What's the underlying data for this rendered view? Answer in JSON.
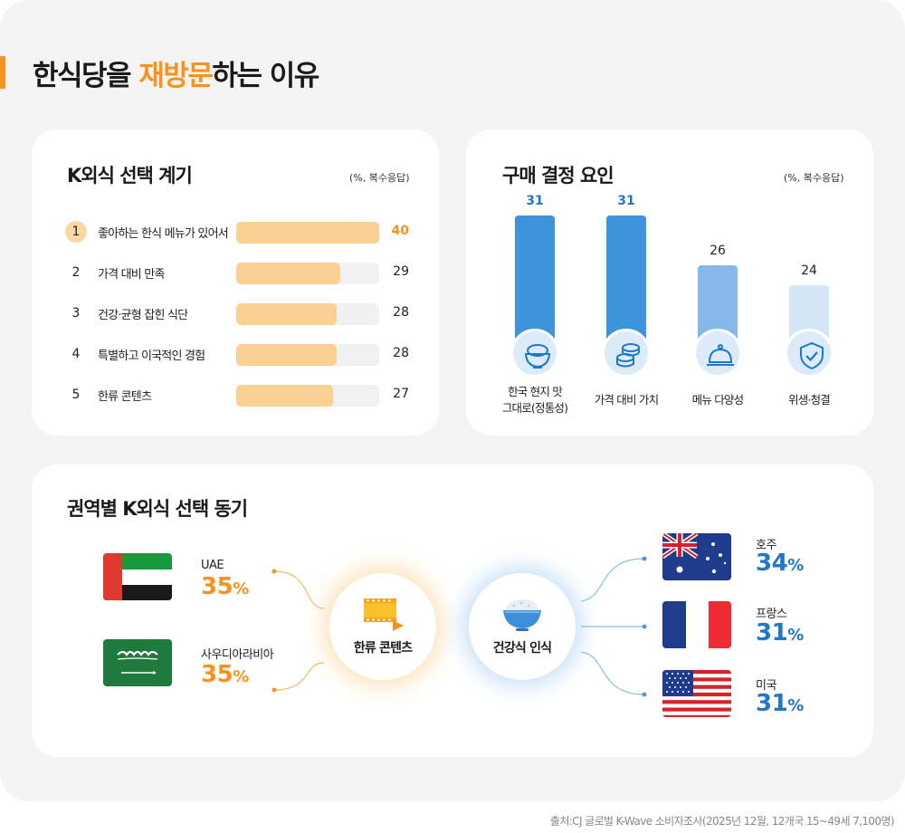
{
  "title": {
    "pre": "한식당을 ",
    "highlight": "재방문",
    "post": "하는 이유"
  },
  "source": "출처:CJ 글로벌 K-Wave 소비자조사(2025년 12월, 12개국 15~49세 7,100명)",
  "colors": {
    "orange": "#f7931e",
    "blue": "#1f78c8",
    "bar_light_orange": "#fbd193"
  },
  "chart_data": [
    {
      "type": "bar",
      "orientation": "horizontal",
      "title": "K외식 선택 계기",
      "note": "(%, 복수응답)",
      "ranks": [
        "1",
        "2",
        "3",
        "4",
        "5"
      ],
      "categories": [
        "좋아하는 한식 메뉴가 있어서",
        "가격 대비 만족",
        "건강·균형 잡힌 식단",
        "특별하고 이국적인 경험",
        "한류 콘텐츠"
      ],
      "values": [
        40,
        29,
        28,
        28,
        27
      ],
      "value_labels": [
        "40",
        "29",
        "28",
        "28",
        "27"
      ],
      "xlim": [
        0,
        40
      ]
    },
    {
      "type": "bar",
      "orientation": "vertical",
      "title": "구매 결정 요인",
      "note": "(%, 복수응답)",
      "categories": [
        {
          "line1": "한국 현지 맛",
          "line2": "그대로(정통성)",
          "icon": "rice-bowl-icon"
        },
        {
          "line1": "가격 대비 가치",
          "line2": "",
          "icon": "coins-icon"
        },
        {
          "line1": "메뉴 다양성",
          "line2": "",
          "icon": "cloche-icon"
        },
        {
          "line1": "위생·청결",
          "line2": "",
          "icon": "shield-check-icon"
        }
      ],
      "values": [
        31,
        31,
        26,
        24
      ],
      "value_labels": [
        "31",
        "31",
        "26",
        "24"
      ],
      "bar_colors": [
        "#3f92dc",
        "#3f92dc",
        "#86b9e9",
        "#d3e5f7"
      ],
      "ylim": [
        18,
        31
      ]
    }
  ],
  "regions": {
    "title": "권역별 K외식 선택 동기",
    "hubs": [
      {
        "label": "한류 콘텐츠",
        "icon": "film-icon"
      },
      {
        "label": "건강식 인식",
        "icon": "rice-bowl-icon"
      }
    ],
    "left": [
      {
        "name": "UAE",
        "value": "35",
        "unit": "%",
        "flag": "uae-flag-icon"
      },
      {
        "name": "사우디아라비아",
        "value": "35",
        "unit": "%",
        "flag": "saudi-flag-icon"
      }
    ],
    "right": [
      {
        "name": "호주",
        "value": "34",
        "unit": "%",
        "flag": "australia-flag-icon"
      },
      {
        "name": "프랑스",
        "value": "31",
        "unit": "%",
        "flag": "france-flag-icon"
      },
      {
        "name": "미국",
        "value": "31",
        "unit": "%",
        "flag": "usa-flag-icon"
      }
    ]
  }
}
